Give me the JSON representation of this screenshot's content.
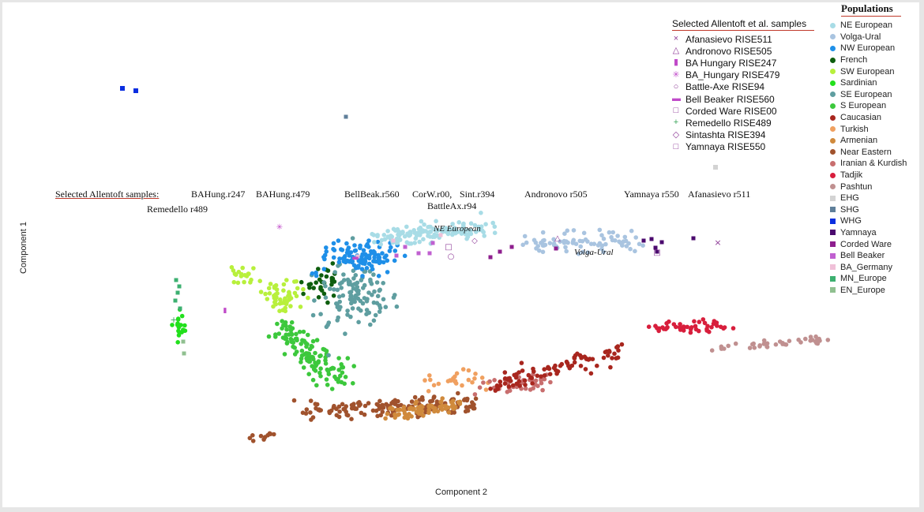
{
  "chart_data": {
    "type": "scatter",
    "xlabel": "Component 2",
    "ylabel": "Component 1",
    "annotations": {
      "title": "Selected Allentoft samples:",
      "labels": [
        "Remedello r489",
        "BAHung.r247",
        "BAHung.r479",
        "BellBeak.r560",
        "CorW.r00,",
        "Sint.r394",
        "BattleAx.r94",
        "Andronovo r505",
        "Yamnaya r550",
        "Afanasievo r511"
      ]
    },
    "regions": [
      "NE European",
      "Volga-Ural"
    ],
    "selected_legend": {
      "title": "Selected Allentoft et al. samples",
      "items": [
        {
          "label": "Afanasievo RISE511",
          "symbol": "×",
          "color": "#8e3b97"
        },
        {
          "label": "Andronovo RISE505",
          "symbol": "△",
          "color": "#8e3b97"
        },
        {
          "label": "BA  Hungary RISE247",
          "symbol": "▮",
          "color": "#c04ac9"
        },
        {
          "label": "BA_Hungary RISE479",
          "symbol": "✳",
          "color": "#c04ac9"
        },
        {
          "label": "Battle-Axe RISE94",
          "symbol": "○",
          "color": "#8e3b97"
        },
        {
          "label": "Bell Beaker RISE560",
          "symbol": "▬",
          "color": "#c04ac9"
        },
        {
          "label": "Corded Ware RISE00",
          "symbol": "□",
          "color": "#8e3b97"
        },
        {
          "label": "Remedello RISE489",
          "symbol": "+",
          "color": "#3aa55a"
        },
        {
          "label": "Sintashta RISE394",
          "symbol": "◇",
          "color": "#8e3b97"
        },
        {
          "label": "Yamnaya RISE550",
          "symbol": "□",
          "color": "#8e3b97"
        }
      ]
    },
    "legend_title": "Populations",
    "series": [
      {
        "name": "NE European",
        "color": "#a8dce6",
        "shape": "circle"
      },
      {
        "name": "Volga-Ural",
        "color": "#a9c4e0",
        "shape": "circle"
      },
      {
        "name": "NW European",
        "color": "#1e8fe8",
        "shape": "circle"
      },
      {
        "name": "French",
        "color": "#0e5e0e",
        "shape": "circle"
      },
      {
        "name": "SW European",
        "color": "#b8f03c",
        "shape": "circle"
      },
      {
        "name": "Sardinian",
        "color": "#22e01c",
        "shape": "circle"
      },
      {
        "name": "SE European",
        "color": "#5f9ea0",
        "shape": "circle"
      },
      {
        "name": "S European",
        "color": "#3cc83c",
        "shape": "circle"
      },
      {
        "name": "Caucasian",
        "color": "#a8261e",
        "shape": "circle"
      },
      {
        "name": "Turkish",
        "color": "#f0a060",
        "shape": "circle"
      },
      {
        "name": "Armenian",
        "color": "#d08a3c",
        "shape": "circle"
      },
      {
        "name": "Near Eastern",
        "color": "#a0522d",
        "shape": "circle"
      },
      {
        "name": "Iranian & Kurdish",
        "color": "#c86e6e",
        "shape": "circle"
      },
      {
        "name": "Tadjik",
        "color": "#d81e3c",
        "shape": "circle"
      },
      {
        "name": "Pashtun",
        "color": "#c09090",
        "shape": "circle"
      },
      {
        "name": "EHG",
        "color": "#d3d3d3",
        "shape": "square"
      },
      {
        "name": "SHG",
        "color": "#5f7f9a",
        "shape": "square"
      },
      {
        "name": "WHG",
        "color": "#0a2ee0",
        "shape": "square"
      },
      {
        "name": "Yamnaya",
        "color": "#4b0a6e",
        "shape": "square"
      },
      {
        "name": "Corded Ware",
        "color": "#8e1e8e",
        "shape": "square"
      },
      {
        "name": "Bell Beaker",
        "color": "#c060d0",
        "shape": "square"
      },
      {
        "name": "BA_Germany",
        "color": "#f0c0d8",
        "shape": "square"
      },
      {
        "name": "MN_Europe",
        "color": "#3cb070",
        "shape": "square"
      },
      {
        "name": "EN_Europe",
        "color": "#90c090",
        "shape": "square"
      }
    ],
    "grid": false,
    "legend_position": "right"
  }
}
